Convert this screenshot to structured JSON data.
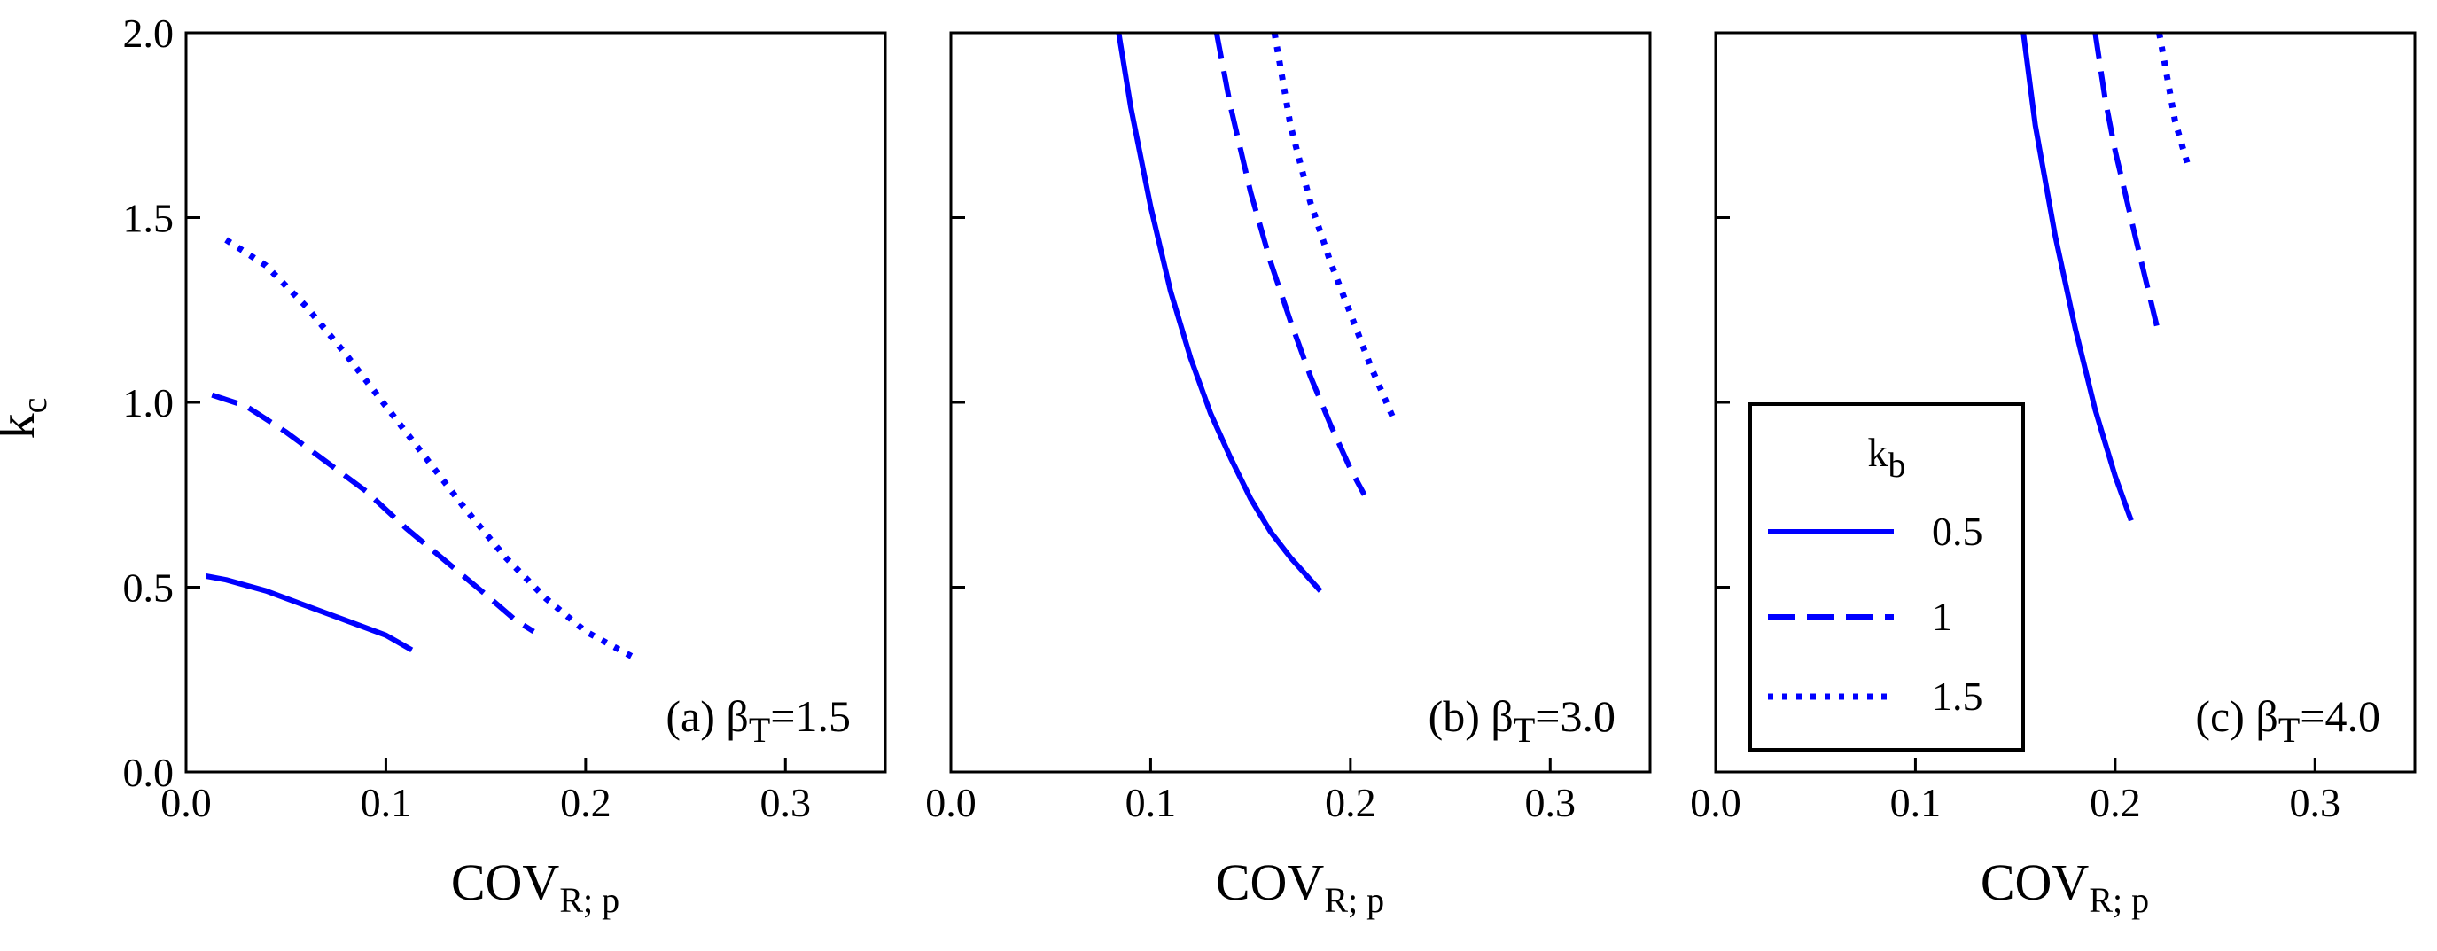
{
  "chart_data": [
    {
      "type": "line",
      "panel_label": {
        "prefix": "(a) ",
        "symbol": "β",
        "subscript": "T",
        "suffix": "=1.5"
      },
      "xlabel": {
        "main": "COV",
        "subscript": "R; p"
      },
      "ylabel": {
        "main": "k",
        "subscript": "c"
      },
      "xlim": [
        0.0,
        0.35
      ],
      "ylim": [
        0.0,
        2.0
      ],
      "xticks": [
        "0.0",
        "0.1",
        "0.2",
        "0.3"
      ],
      "yticks": [
        "0.0",
        "0.5",
        "1.0",
        "1.5",
        "2.0"
      ],
      "series": [
        {
          "name": "0.5",
          "style": "solid",
          "x": [
            0.01,
            0.02,
            0.04,
            0.06,
            0.08,
            0.1,
            0.113
          ],
          "y": [
            0.53,
            0.52,
            0.49,
            0.45,
            0.41,
            0.37,
            0.33
          ]
        },
        {
          "name": "1",
          "style": "dashed",
          "x": [
            0.013,
            0.03,
            0.05,
            0.07,
            0.09,
            0.11,
            0.13,
            0.15,
            0.165,
            0.174
          ],
          "y": [
            1.02,
            0.99,
            0.92,
            0.84,
            0.76,
            0.66,
            0.57,
            0.48,
            0.41,
            0.38
          ]
        },
        {
          "name": "1.5",
          "style": "dotted",
          "x": [
            0.02,
            0.04,
            0.06,
            0.08,
            0.1,
            0.12,
            0.14,
            0.16,
            0.18,
            0.2,
            0.224
          ],
          "y": [
            1.44,
            1.37,
            1.26,
            1.13,
            0.99,
            0.85,
            0.71,
            0.58,
            0.47,
            0.38,
            0.31
          ]
        }
      ]
    },
    {
      "type": "line",
      "panel_label": {
        "prefix": "(b) ",
        "symbol": "β",
        "subscript": "T",
        "suffix": "=3.0"
      },
      "xlabel": {
        "main": "COV",
        "subscript": "R; p"
      },
      "xlim": [
        0.0,
        0.35
      ],
      "ylim": [
        0.0,
        2.0
      ],
      "xticks": [
        "0.0",
        "0.1",
        "0.2",
        "0.3"
      ],
      "yticks": [],
      "series": [
        {
          "name": "0.5",
          "style": "solid",
          "x": [
            0.084,
            0.09,
            0.1,
            0.11,
            0.12,
            0.13,
            0.14,
            0.15,
            0.16,
            0.17,
            0.185
          ],
          "y": [
            2.0,
            1.8,
            1.53,
            1.3,
            1.12,
            0.97,
            0.85,
            0.74,
            0.65,
            0.58,
            0.49
          ]
        },
        {
          "name": "1",
          "style": "dashed",
          "x": [
            0.133,
            0.14,
            0.15,
            0.16,
            0.17,
            0.18,
            0.19,
            0.2,
            0.207
          ],
          "y": [
            2.0,
            1.8,
            1.57,
            1.38,
            1.22,
            1.07,
            0.94,
            0.82,
            0.75
          ]
        },
        {
          "name": "1.5",
          "style": "dotted",
          "x": [
            0.162,
            0.17,
            0.18,
            0.19,
            0.2,
            0.21,
            0.222
          ],
          "y": [
            2.0,
            1.75,
            1.54,
            1.38,
            1.24,
            1.1,
            0.95
          ]
        }
      ]
    },
    {
      "type": "line",
      "panel_label": {
        "prefix": "(c) ",
        "symbol": "β",
        "subscript": "T",
        "suffix": "=4.0"
      },
      "xlabel": {
        "main": "COV",
        "subscript": "R; p"
      },
      "xlim": [
        0.0,
        0.35
      ],
      "ylim": [
        0.0,
        2.0
      ],
      "xticks": [
        "0.0",
        "0.1",
        "0.2",
        "0.3"
      ],
      "yticks": [],
      "legend": {
        "title_main": "k",
        "title_subscript": "b",
        "entries": [
          "0.5",
          "1",
          "1.5"
        ],
        "placement": "lower-center"
      },
      "series": [
        {
          "name": "0.5",
          "style": "solid",
          "x": [
            0.154,
            0.16,
            0.17,
            0.18,
            0.19,
            0.2,
            0.208
          ],
          "y": [
            2.0,
            1.75,
            1.45,
            1.2,
            0.98,
            0.8,
            0.68
          ]
        },
        {
          "name": "1",
          "style": "dashed",
          "x": [
            0.19,
            0.195,
            0.2,
            0.21,
            0.222
          ],
          "y": [
            2.0,
            1.82,
            1.68,
            1.45,
            1.18
          ]
        },
        {
          "name": "1.5",
          "style": "dotted",
          "x": [
            0.222,
            0.226,
            0.23,
            0.237
          ],
          "y": [
            2.0,
            1.88,
            1.76,
            1.63
          ]
        }
      ]
    }
  ],
  "colors": {
    "series": "#0000ff",
    "axis": "#000000"
  }
}
